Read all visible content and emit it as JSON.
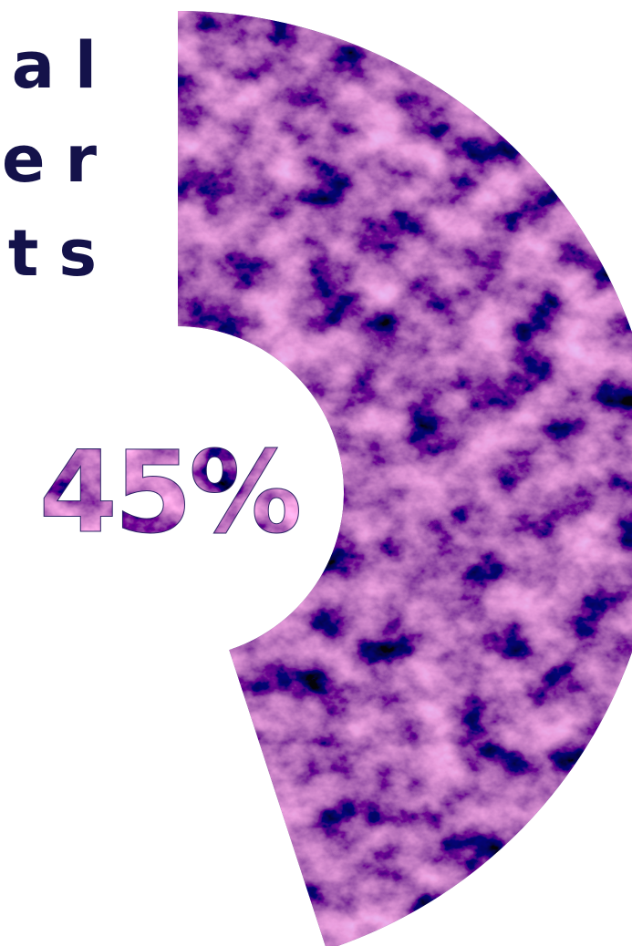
{
  "chart_data": {
    "type": "donut",
    "title_lines": [
      "al",
      "er",
      "ts"
    ],
    "values": [
      45
    ],
    "value_labels": [
      "45%"
    ],
    "color": "#2e2466"
  }
}
